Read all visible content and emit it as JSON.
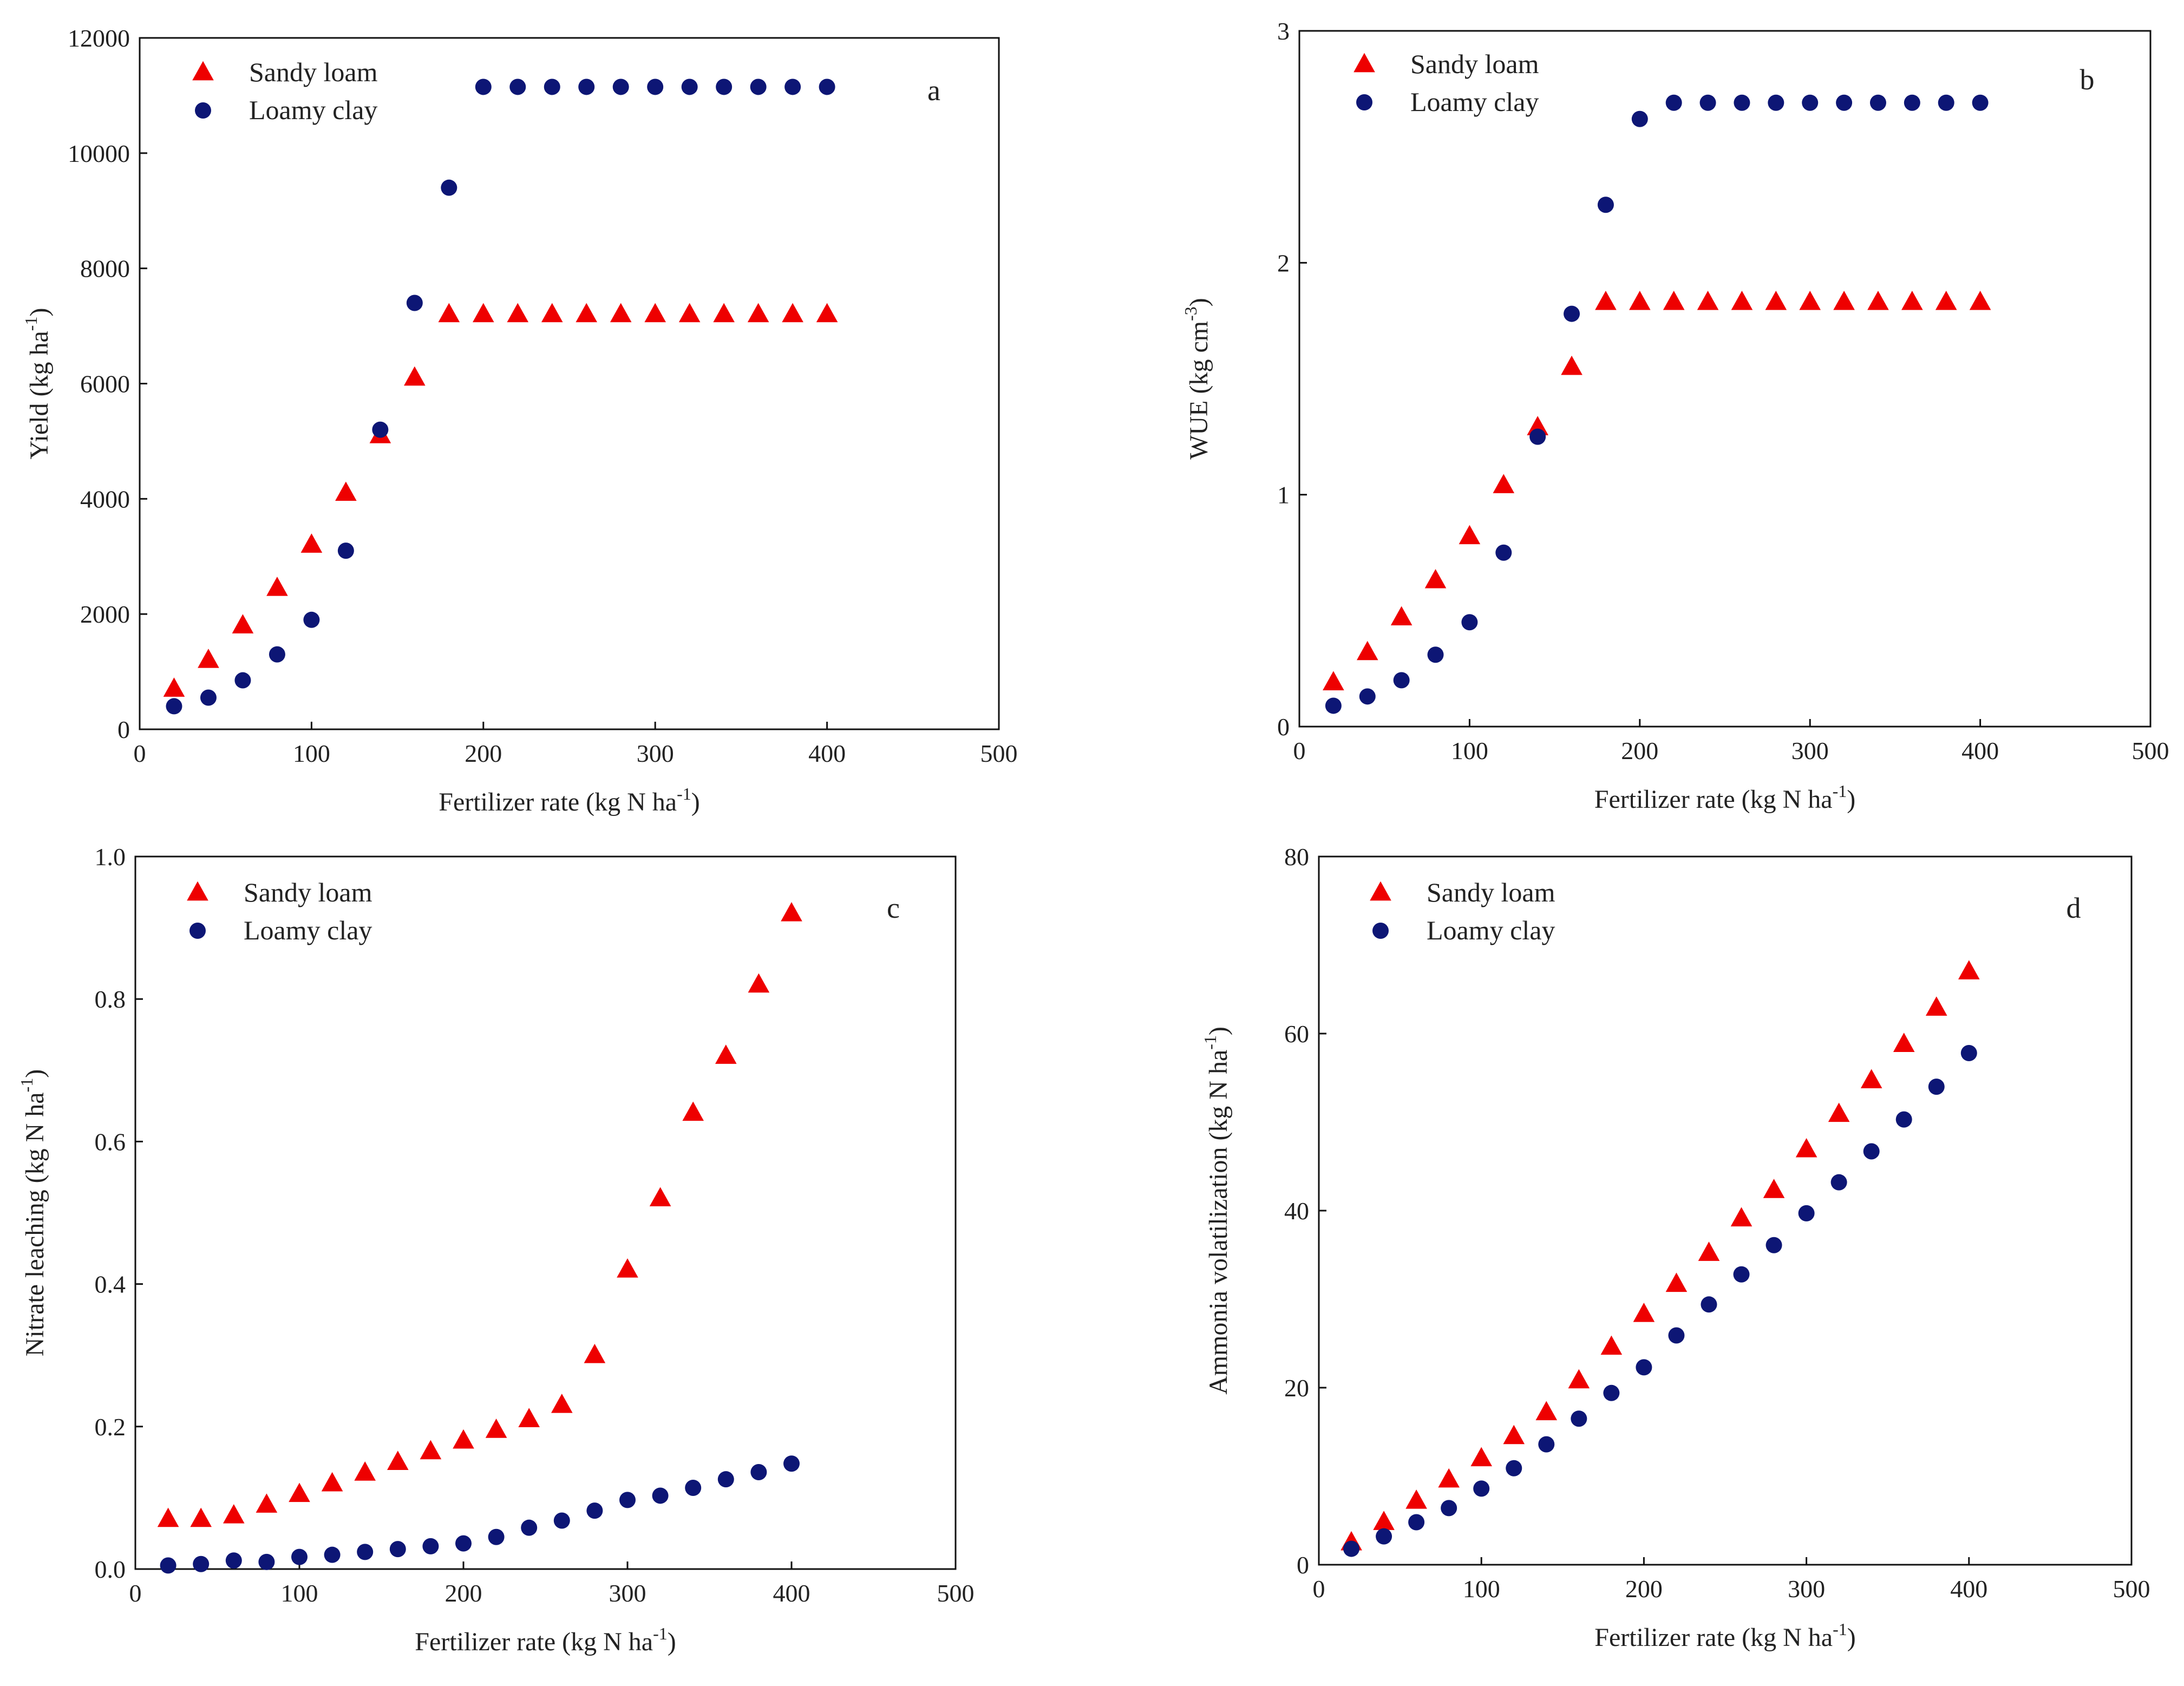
{
  "figure": {
    "marker_colors": {
      "sandy_loam": "#ee0000",
      "loamy_clay": "#0d1675"
    }
  },
  "panels": [
    {
      "letter": "a",
      "legend": [
        "Sandy loam",
        "Loamy clay"
      ],
      "xlabel": {
        "main": "Fertilizer rate (kg N ha",
        "sup": "-1",
        "end": ")"
      },
      "ylabel": {
        "main": "Yield (kg ha",
        "sup": "-1",
        "end": ")"
      },
      "x_ticks": [
        "0",
        "100",
        "200",
        "300",
        "400",
        "500"
      ],
      "y_ticks": [
        "0",
        "2000",
        "4000",
        "6000",
        "8000",
        "10000",
        "12000"
      ]
    },
    {
      "letter": "b",
      "legend": [
        "Sandy loam",
        "Loamy clay"
      ],
      "xlabel": {
        "main": "Fertilizer rate (kg N ha",
        "sup": "-1",
        "end": ")"
      },
      "ylabel": {
        "main": "WUE (kg cm",
        "sup": "-3",
        "end": ")"
      },
      "x_ticks": [
        "0",
        "100",
        "200",
        "300",
        "400",
        "500"
      ],
      "y_ticks": [
        "0",
        "1",
        "2",
        "3"
      ]
    },
    {
      "letter": "c",
      "legend": [
        "Sandy loam",
        "Loamy clay"
      ],
      "xlabel": {
        "main": "Fertilizer rate (kg N ha",
        "sup": "-1",
        "end": ")"
      },
      "ylabel": {
        "main": "Nitrate leaching (kg N ha",
        "sup": "-1",
        "end": ")"
      },
      "x_ticks": [
        "0",
        "100",
        "200",
        "300",
        "400",
        "500"
      ],
      "y_ticks": [
        "0.0",
        "0.2",
        "0.4",
        "0.6",
        "0.8",
        "1.0"
      ]
    },
    {
      "letter": "d",
      "legend": [
        "Sandy loam",
        "Loamy clay"
      ],
      "xlabel": {
        "main": "Fertilizer rate (kg N ha",
        "sup": "-1",
        "end": ")"
      },
      "ylabel": {
        "main": "Ammonia volatilization (kg N ha",
        "sup": "-1",
        "end": ")"
      },
      "x_ticks": [
        "0",
        "100",
        "200",
        "300",
        "400",
        "500"
      ],
      "y_ticks": [
        "0",
        "20",
        "40",
        "60",
        "80"
      ]
    }
  ],
  "chart_data": [
    {
      "type": "scatter",
      "panel": "a",
      "title": "",
      "xlabel": "Fertilizer rate (kg N ha-1)",
      "ylabel": "Yield (kg ha-1)",
      "xlim": [
        0,
        500
      ],
      "ylim": [
        0,
        12000
      ],
      "x": [
        20,
        40,
        60,
        80,
        100,
        120,
        140,
        160,
        180,
        200,
        220,
        240,
        260,
        280,
        300,
        320,
        340,
        360,
        380,
        400
      ],
      "series": [
        {
          "name": "Sandy loam",
          "marker": "triangle",
          "values": [
            700,
            1200,
            1800,
            2450,
            3200,
            4100,
            5100,
            6100,
            7200,
            7200,
            7200,
            7200,
            7200,
            7200,
            7200,
            7200,
            7200,
            7200,
            7200,
            7200
          ]
        },
        {
          "name": "Loamy clay",
          "marker": "circle",
          "values": [
            400,
            550,
            850,
            1300,
            1900,
            3100,
            5200,
            7400,
            9400,
            11150,
            11150,
            11150,
            11150,
            11150,
            11150,
            11150,
            11150,
            11150,
            11150,
            11150
          ]
        }
      ]
    },
    {
      "type": "scatter",
      "panel": "b",
      "title": "",
      "xlabel": "Fertilizer rate (kg N ha-1)",
      "ylabel": "WUE (kg cm-3)",
      "xlim": [
        0,
        500
      ],
      "ylim": [
        0,
        3
      ],
      "x": [
        20,
        40,
        60,
        80,
        100,
        120,
        140,
        160,
        180,
        200,
        220,
        240,
        260,
        280,
        300,
        320,
        340,
        360,
        380,
        400
      ],
      "series": [
        {
          "name": "Sandy loam",
          "marker": "triangle",
          "values": [
            0.19,
            0.32,
            0.47,
            0.63,
            0.82,
            1.04,
            1.29,
            1.55,
            1.83,
            1.83,
            1.83,
            1.83,
            1.83,
            1.83,
            1.83,
            1.83,
            1.83,
            1.83,
            1.83,
            1.83
          ]
        },
        {
          "name": "Loamy clay",
          "marker": "circle",
          "values": [
            0.09,
            0.13,
            0.2,
            0.31,
            0.45,
            0.75,
            1.25,
            1.78,
            2.25,
            2.62,
            2.69,
            2.69,
            2.69,
            2.69,
            2.69,
            2.69,
            2.69,
            2.69,
            2.69,
            2.69
          ]
        }
      ]
    },
    {
      "type": "scatter",
      "panel": "c",
      "title": "",
      "xlabel": "Fertilizer rate (kg N ha-1)",
      "ylabel": "Nitrate leaching (kg N ha-1)",
      "xlim": [
        0,
        500
      ],
      "ylim": [
        0,
        1.0
      ],
      "x": [
        20,
        40,
        60,
        80,
        100,
        120,
        140,
        160,
        180,
        200,
        220,
        240,
        260,
        280,
        300,
        320,
        340,
        360,
        380,
        400
      ],
      "series": [
        {
          "name": "Sandy loam",
          "marker": "triangle",
          "values": [
            0.07,
            0.07,
            0.075,
            0.09,
            0.105,
            0.12,
            0.135,
            0.15,
            0.165,
            0.18,
            0.195,
            0.21,
            0.23,
            0.3,
            0.42,
            0.52,
            0.64,
            0.72,
            0.82,
            0.92
          ]
        },
        {
          "name": "Loamy clay",
          "marker": "circle",
          "values": [
            0.005,
            0.007,
            0.012,
            0.01,
            0.017,
            0.02,
            0.024,
            0.028,
            0.032,
            0.036,
            0.045,
            0.058,
            0.068,
            0.082,
            0.097,
            0.103,
            0.114,
            0.126,
            0.136,
            0.148
          ]
        }
      ]
    },
    {
      "type": "scatter",
      "panel": "d",
      "title": "",
      "xlabel": "Fertilizer rate (kg N ha-1)",
      "ylabel": "Ammonia volatilization (kg N ha-1)",
      "xlim": [
        0,
        500
      ],
      "ylim": [
        0,
        80
      ],
      "x": [
        20,
        40,
        60,
        80,
        100,
        120,
        140,
        160,
        180,
        200,
        220,
        240,
        260,
        280,
        300,
        320,
        340,
        360,
        380,
        400
      ],
      "series": [
        {
          "name": "Sandy loam",
          "marker": "triangle",
          "values": [
            2.5,
            4.8,
            7.2,
            9.6,
            12.0,
            14.5,
            17.2,
            20.8,
            24.6,
            28.3,
            31.7,
            35.2,
            39.1,
            42.3,
            46.9,
            50.9,
            54.7,
            58.8,
            62.9,
            67.0
          ]
        },
        {
          "name": "Loamy clay",
          "marker": "circle",
          "values": [
            1.8,
            3.2,
            4.8,
            6.4,
            8.6,
            10.9,
            13.6,
            16.5,
            19.4,
            22.3,
            25.9,
            29.4,
            32.8,
            36.1,
            39.7,
            43.2,
            46.7,
            50.3,
            54.0,
            57.8
          ]
        }
      ]
    }
  ]
}
